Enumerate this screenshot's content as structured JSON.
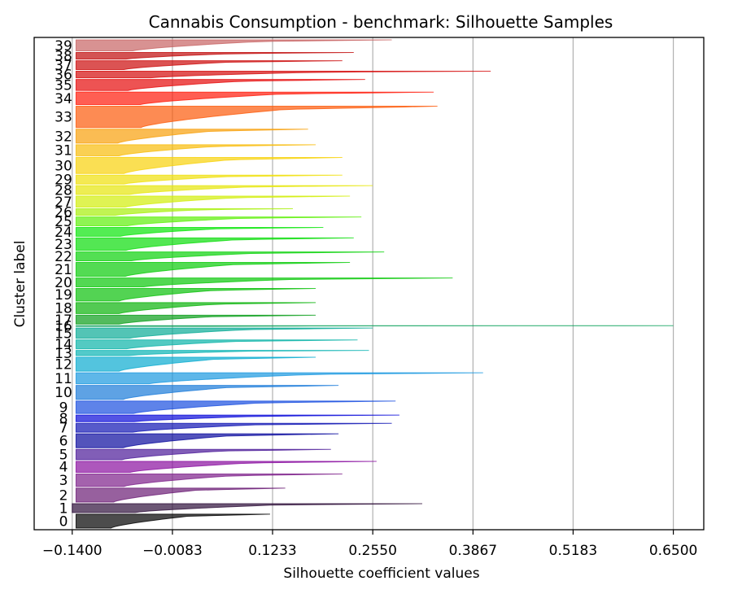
{
  "chart_data": {
    "type": "silhouette",
    "title": "Cannabis Consumption - benchmark: Silhouette Samples",
    "xlabel": "Silhouette coefficient values",
    "ylabel": "Cluster label",
    "xlim": [
      -0.19,
      0.69
    ],
    "xticks": [
      "-0.1400",
      "-0.0083",
      "0.1233",
      "0.2550",
      "0.3867",
      "0.5183",
      "0.6500"
    ],
    "xtick_values": [
      -0.14,
      -0.0083,
      0.1233,
      0.255,
      0.3867,
      0.5183,
      0.65
    ],
    "grid_x": true,
    "clusters": [
      {
        "label": "0",
        "size": 19,
        "min": -0.135,
        "max": 0.12,
        "color": "#000000"
      },
      {
        "label": "1",
        "size": 12,
        "min": -0.14,
        "max": 0.32,
        "color": "#2e0f3a"
      },
      {
        "label": "2",
        "size": 19,
        "min": -0.135,
        "max": 0.14,
        "color": "#6b1d75"
      },
      {
        "label": "3",
        "size": 17,
        "min": -0.135,
        "max": 0.215,
        "color": "#7d1f8a"
      },
      {
        "label": "4",
        "size": 15,
        "min": -0.135,
        "max": 0.26,
        "color": "#8a0fa0"
      },
      {
        "label": "5",
        "size": 14,
        "min": -0.135,
        "max": 0.2,
        "color": "#4b1a99"
      },
      {
        "label": "6",
        "size": 19,
        "min": -0.135,
        "max": 0.21,
        "color": "#0a0a9e"
      },
      {
        "label": "7",
        "size": 12,
        "min": -0.135,
        "max": 0.28,
        "color": "#0f14b3"
      },
      {
        "label": "8",
        "size": 9,
        "min": -0.135,
        "max": 0.29,
        "color": "#0a0ad9"
      },
      {
        "label": "9",
        "size": 17,
        "min": -0.135,
        "max": 0.285,
        "color": "#1a4fe0"
      },
      {
        "label": "10",
        "size": 19,
        "min": -0.135,
        "max": 0.21,
        "color": "#1a7ad9"
      },
      {
        "label": "11",
        "size": 15,
        "min": -0.135,
        "max": 0.4,
        "color": "#1a99e0"
      },
      {
        "label": "12",
        "size": 19,
        "min": -0.135,
        "max": 0.18,
        "color": "#0aabd0"
      },
      {
        "label": "13",
        "size": 7,
        "min": -0.135,
        "max": 0.25,
        "color": "#0ab3b3"
      },
      {
        "label": "14",
        "size": 12,
        "min": -0.135,
        "max": 0.235,
        "color": "#0ab3a8"
      },
      {
        "label": "15",
        "size": 14,
        "min": -0.135,
        "max": 0.255,
        "color": "#0aab96"
      },
      {
        "label": "16",
        "size": 1,
        "min": -0.135,
        "max": 0.65,
        "color": "#0aa05a"
      },
      {
        "label": "17",
        "size": 12,
        "min": -0.135,
        "max": 0.18,
        "color": "#0a9e1a"
      },
      {
        "label": "18",
        "size": 15,
        "min": -0.135,
        "max": 0.18,
        "color": "#0ab30a"
      },
      {
        "label": "19",
        "size": 17,
        "min": -0.135,
        "max": 0.18,
        "color": "#0ac00a"
      },
      {
        "label": "20",
        "size": 12,
        "min": -0.135,
        "max": 0.36,
        "color": "#0ac80a"
      },
      {
        "label": "21",
        "size": 19,
        "min": -0.135,
        "max": 0.225,
        "color": "#0acc0a"
      },
      {
        "label": "22",
        "size": 12,
        "min": -0.135,
        "max": 0.27,
        "color": "#0ad20a"
      },
      {
        "label": "23",
        "size": 17,
        "min": -0.135,
        "max": 0.23,
        "color": "#0add0a"
      },
      {
        "label": "24",
        "size": 12,
        "min": -0.135,
        "max": 0.19,
        "color": "#0ae60a"
      },
      {
        "label": "25",
        "size": 12,
        "min": -0.135,
        "max": 0.24,
        "color": "#5ef00a"
      },
      {
        "label": "26",
        "size": 9,
        "min": -0.135,
        "max": 0.15,
        "color": "#a8f00a"
      },
      {
        "label": "27",
        "size": 15,
        "min": -0.135,
        "max": 0.225,
        "color": "#d2ee0a"
      },
      {
        "label": "28",
        "size": 12,
        "min": -0.135,
        "max": 0.255,
        "color": "#e6e60a"
      },
      {
        "label": "29",
        "size": 12,
        "min": -0.135,
        "max": 0.215,
        "color": "#f0e00a"
      },
      {
        "label": "30",
        "size": 22,
        "min": -0.135,
        "max": 0.215,
        "color": "#f8d20a"
      },
      {
        "label": "31",
        "size": 15,
        "min": -0.135,
        "max": 0.18,
        "color": "#f8bc0a"
      },
      {
        "label": "32",
        "size": 19,
        "min": -0.135,
        "max": 0.17,
        "color": "#f8a00a"
      },
      {
        "label": "33",
        "size": 29,
        "min": -0.135,
        "max": 0.34,
        "color": "#fc5a0a"
      },
      {
        "label": "34",
        "size": 17,
        "min": -0.135,
        "max": 0.335,
        "color": "#ff1a0a"
      },
      {
        "label": "35",
        "size": 15,
        "min": -0.135,
        "max": 0.245,
        "color": "#e60a0a"
      },
      {
        "label": "36",
        "size": 9,
        "min": -0.135,
        "max": 0.41,
        "color": "#d40a0a"
      },
      {
        "label": "37",
        "size": 12,
        "min": -0.135,
        "max": 0.215,
        "color": "#cc0a0a"
      },
      {
        "label": "38",
        "size": 9,
        "min": -0.135,
        "max": 0.23,
        "color": "#c00a0a"
      },
      {
        "label": "39",
        "size": 15,
        "min": -0.135,
        "max": 0.28,
        "color": "#c86464"
      }
    ]
  }
}
